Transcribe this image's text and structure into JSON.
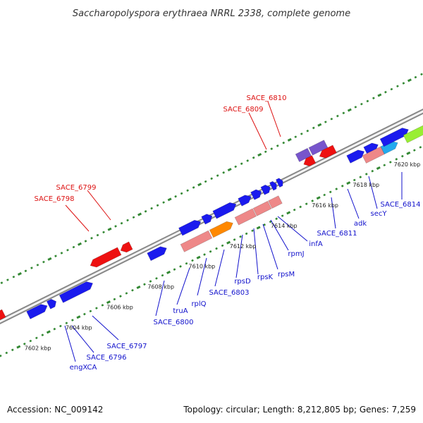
{
  "title": "Saccharopolyspora erythraea NRRL 2338, complete genome",
  "accession": "Accession: NC_009142",
  "topology": "Topology: circular; Length: 8,212,805 bp; Genes: 7,259",
  "colors": {
    "forward_gene": "#1a1aee",
    "reverse_gene": "#ee1111",
    "hypothetical": "#7755cc",
    "rrna": "#ee8888",
    "orange_gene": "#ff8800",
    "cyan_gene": "#22aaee",
    "lime_gene": "#99ee33",
    "olive_gene": "#aa9966",
    "tick_color": "#338833",
    "red_label": "#dd1111",
    "blue_label": "#1111cc"
  },
  "ruler_labels": [
    "7602 kbp",
    "7604 kbp",
    "7606 kbp",
    "7608 kbp",
    "7610 kbp",
    "7612 kbp",
    "7614 kbp",
    "7616 kbp",
    "7618 kbp",
    "7620 kbp"
  ],
  "reverse_labels": [
    "SACE_6798",
    "SACE_6799",
    "SACE_6809",
    "SACE_6810"
  ],
  "forward_labels": [
    "engXCA",
    "SACE_6796",
    "SACE_6797",
    "SACE_6800",
    "truA",
    "rplQ",
    "SACE_6803",
    "rpsD",
    "rpsK",
    "rpsM",
    "rpmJ",
    "infA",
    "SACE_6811",
    "adk",
    "secY",
    "SACE_6814"
  ]
}
